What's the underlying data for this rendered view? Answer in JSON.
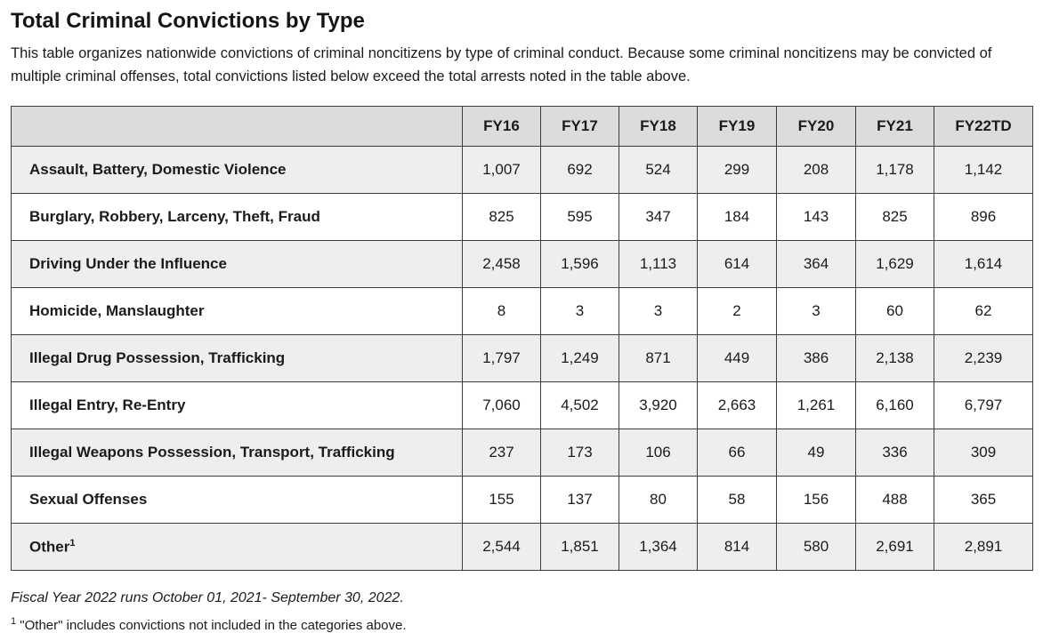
{
  "page": {
    "title": "Total Criminal Convictions by Type",
    "description": "This table organizes nationwide convictions of criminal noncitizens by type of criminal conduct. Because some criminal noncitizens may be convicted of multiple criminal offenses, total convictions listed below exceed the total arrests noted in the table above.",
    "fiscal_year_note": "Fiscal Year 2022 runs October 01, 2021- September 30, 2022.",
    "other_footnote_marker": "1",
    "other_footnote_text": "\"Other\" includes convictions not included in the categories above."
  },
  "colors": {
    "text": "#1b1b1b",
    "border": "#3d3d3d",
    "header_bg": "#dcdcdc",
    "row_alt_bg": "#eeeeee"
  },
  "chart_data": {
    "type": "table",
    "title": "Total Criminal Convictions by Type",
    "columns": [
      "FY16",
      "FY17",
      "FY18",
      "FY19",
      "FY20",
      "FY21",
      "FY22TD"
    ],
    "rows": [
      {
        "label": "Assault, Battery, Domestic Violence",
        "values": [
          1007,
          692,
          524,
          299,
          208,
          1178,
          1142
        ]
      },
      {
        "label": "Burglary, Robbery, Larceny, Theft, Fraud",
        "values": [
          825,
          595,
          347,
          184,
          143,
          825,
          896
        ]
      },
      {
        "label": "Driving Under the Influence",
        "values": [
          2458,
          1596,
          1113,
          614,
          364,
          1629,
          1614
        ]
      },
      {
        "label": "Homicide, Manslaughter",
        "values": [
          8,
          3,
          3,
          2,
          3,
          60,
          62
        ]
      },
      {
        "label": "Illegal Drug Possession, Trafficking",
        "values": [
          1797,
          1249,
          871,
          449,
          386,
          2138,
          2239
        ]
      },
      {
        "label": "Illegal Entry, Re-Entry",
        "values": [
          7060,
          4502,
          3920,
          2663,
          1261,
          6160,
          6797
        ]
      },
      {
        "label": "Illegal Weapons Possession, Transport, Trafficking",
        "values": [
          237,
          173,
          106,
          66,
          49,
          336,
          309
        ]
      },
      {
        "label": "Sexual Offenses",
        "values": [
          155,
          137,
          80,
          58,
          156,
          488,
          365
        ]
      },
      {
        "label": "Other",
        "footnote_marker": "1",
        "values": [
          2544,
          1851,
          1364,
          814,
          580,
          2691,
          2891
        ]
      }
    ]
  }
}
